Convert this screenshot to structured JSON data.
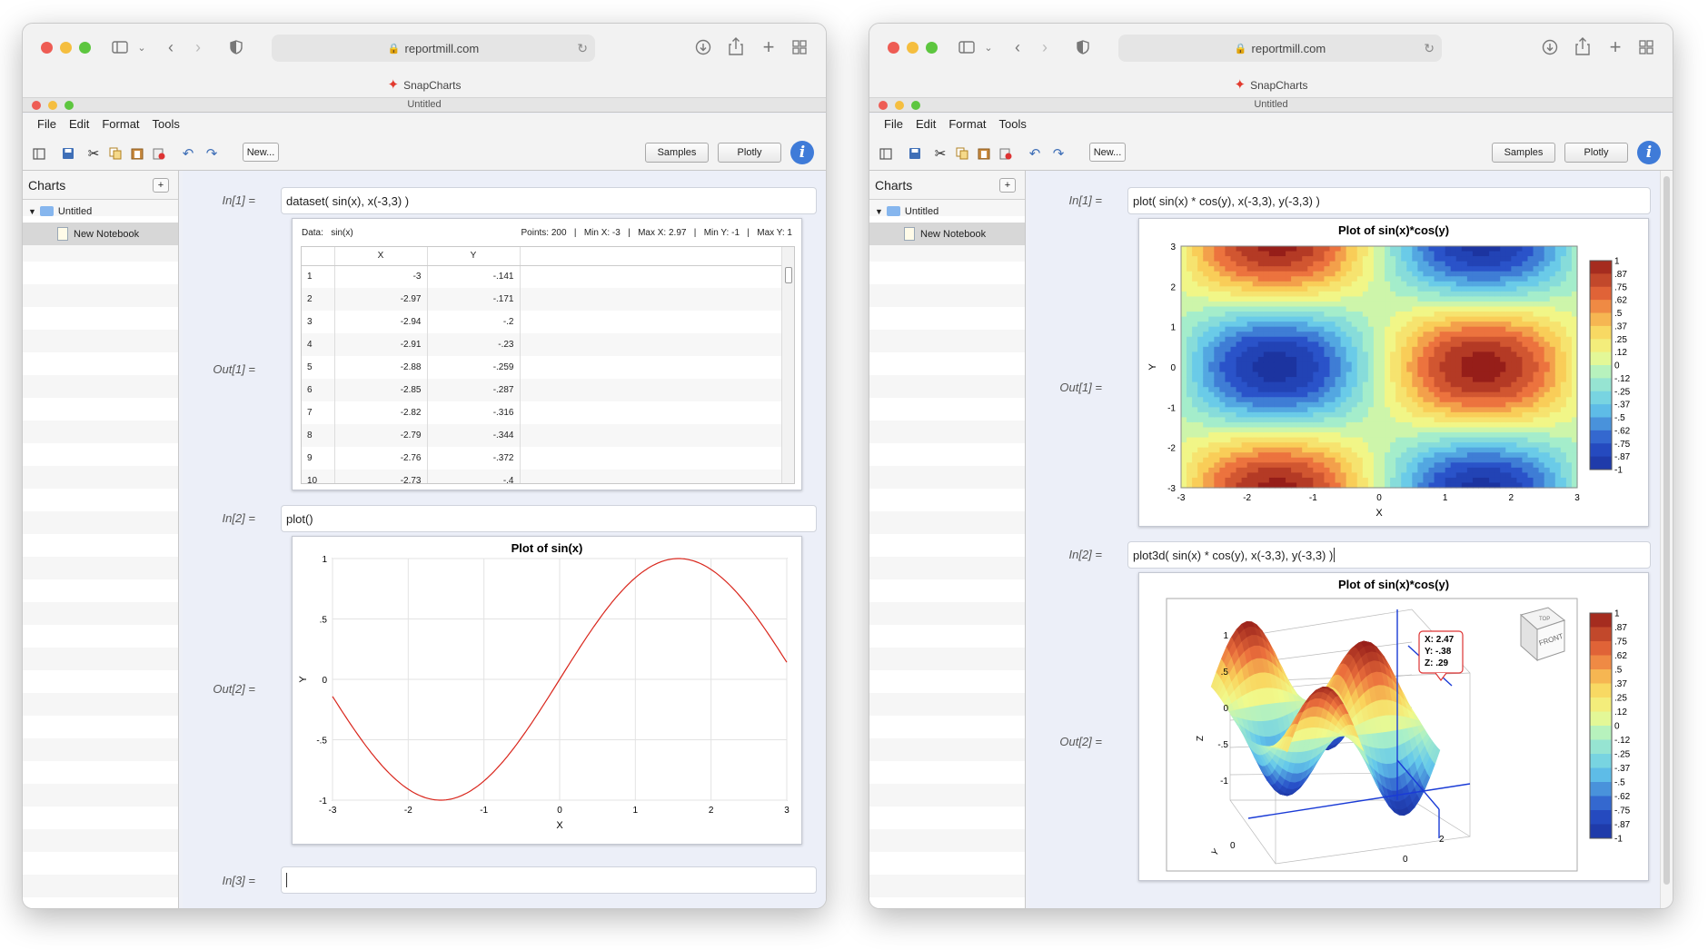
{
  "browser": {
    "url": "reportmill.com",
    "tab_title": "SnapCharts"
  },
  "app": {
    "window_title": "Untitled",
    "menu": [
      "File",
      "Edit",
      "Format",
      "Tools"
    ],
    "new_button": "New...",
    "samples_button": "Samples",
    "plotly_button": "Plotly",
    "info_glyph": "i"
  },
  "sidebar": {
    "header": "Charts",
    "add": "+",
    "folder": "Untitled",
    "notebook": "New Notebook"
  },
  "left": {
    "cells": [
      {
        "in_label": "In[1] =",
        "input": "dataset( sin(x), x(-3,3) )",
        "out_label": "Out[1] ="
      },
      {
        "in_label": "In[2] =",
        "input": "plot()",
        "out_label": "Out[2] ="
      },
      {
        "in_label": "In[3] =",
        "input": ""
      }
    ],
    "dataset": {
      "data_label": "Data:",
      "data_name": "sin(x)",
      "stats": "Points: 200   |   Min X: -3   |   Max X: 2.97   |   Min Y: -1   |   Max Y: 1",
      "col_x": "X",
      "col_y": "Y",
      "rows": [
        [
          "1",
          "-3",
          "-.141"
        ],
        [
          "2",
          "-2.97",
          "-.171"
        ],
        [
          "3",
          "-2.94",
          "-.2"
        ],
        [
          "4",
          "-2.91",
          "-.23"
        ],
        [
          "5",
          "-2.88",
          "-.259"
        ],
        [
          "6",
          "-2.85",
          "-.287"
        ],
        [
          "7",
          "-2.82",
          "-.316"
        ],
        [
          "8",
          "-2.79",
          "-.344"
        ],
        [
          "9",
          "-2.76",
          "-.372"
        ],
        [
          "10",
          "-2.73",
          "-.4"
        ]
      ]
    }
  },
  "right": {
    "cells": [
      {
        "in_label": "In[1] =",
        "input": "plot( sin(x) * cos(y), x(-3,3), y(-3,3) )",
        "out_label": "Out[1] ="
      },
      {
        "in_label": "In[2] =",
        "input": "plot3d( sin(x) * cos(y), x(-3,3), y(-3,3) )",
        "out_label": "Out[2] ="
      }
    ],
    "tooltip": {
      "x": "X: 2.47",
      "y": "Y: -.38",
      "z": "Z: .29"
    },
    "cube": {
      "top": "TOP",
      "front": "FRONT"
    }
  },
  "colors": {
    "line": "#d9261c",
    "accent": "#3f7bd8"
  },
  "icons": [
    "sidebar-icon",
    "chevron-down-icon",
    "back-icon",
    "forward-icon",
    "shield-icon",
    "lock-icon",
    "reload-icon",
    "download-icon",
    "share-icon",
    "new-tab-icon",
    "tabs-grid-icon",
    "save-icon",
    "cut-icon",
    "copy-icon",
    "paste-icon",
    "delete-icon",
    "undo-icon",
    "redo-icon",
    "info-icon",
    "folder-icon",
    "notebook-icon"
  ],
  "chart_data": [
    {
      "type": "line",
      "title": "Plot of sin(x)",
      "xlabel": "X",
      "ylabel": "Y",
      "xlim": [
        -3,
        3
      ],
      "ylim": [
        -1,
        1
      ],
      "x_ticks": [
        "-3",
        "-2",
        "-1",
        "0",
        "1",
        "2",
        "3"
      ],
      "y_ticks": [
        "1",
        ".5",
        "0",
        "-.5",
        "-1"
      ],
      "series": [
        {
          "function": "sin(x)",
          "x": [
            -3,
            -2.5,
            -2,
            -1.5708,
            -1,
            -0.5,
            0,
            0.5,
            1,
            1.5708,
            2,
            2.5,
            2.97
          ],
          "y": [
            -0.141,
            -0.598,
            -0.909,
            -1,
            -0.841,
            -0.479,
            0,
            0.479,
            0.841,
            1,
            0.909,
            0.598,
            0.171
          ]
        }
      ],
      "grid": true
    },
    {
      "type": "heatmap",
      "title": "Plot of sin(x)*cos(y)",
      "xlabel": "X",
      "ylabel": "Y",
      "xlim": [
        -3,
        3
      ],
      "ylim": [
        -3,
        3
      ],
      "x_ticks": [
        "-3",
        "-2",
        "-1",
        "0",
        "1",
        "2",
        "3"
      ],
      "y_ticks": [
        "3",
        "2",
        "1",
        "0",
        "-1",
        "-2",
        "-3"
      ],
      "z_function": "sin(x)*cos(y)",
      "colorbar_labels": [
        "1",
        ".87",
        ".75",
        ".62",
        ".5",
        ".37",
        ".25",
        ".12",
        "0",
        "-.12",
        "-.25",
        "-.37",
        "-.5",
        "-.62",
        "-.75",
        "-.87",
        "-1"
      ]
    },
    {
      "type": "surface3d",
      "title": "Plot of sin(x)*cos(y)",
      "z_label": "Z",
      "y_label": "Y",
      "z_ticks": [
        "1",
        ".5",
        "0",
        "-.5",
        "-1"
      ],
      "x_ticks": [
        "0",
        "2"
      ],
      "y_ticks": [
        "0"
      ],
      "z_function": "sin(x)*cos(y)",
      "colorbar_labels": [
        "1",
        ".87",
        ".75",
        ".62",
        ".5",
        ".37",
        ".25",
        ".12",
        "0",
        "-.12",
        "-.25",
        "-.37",
        "-.5",
        "-.62",
        "-.75",
        "-.87",
        "-1"
      ]
    }
  ]
}
